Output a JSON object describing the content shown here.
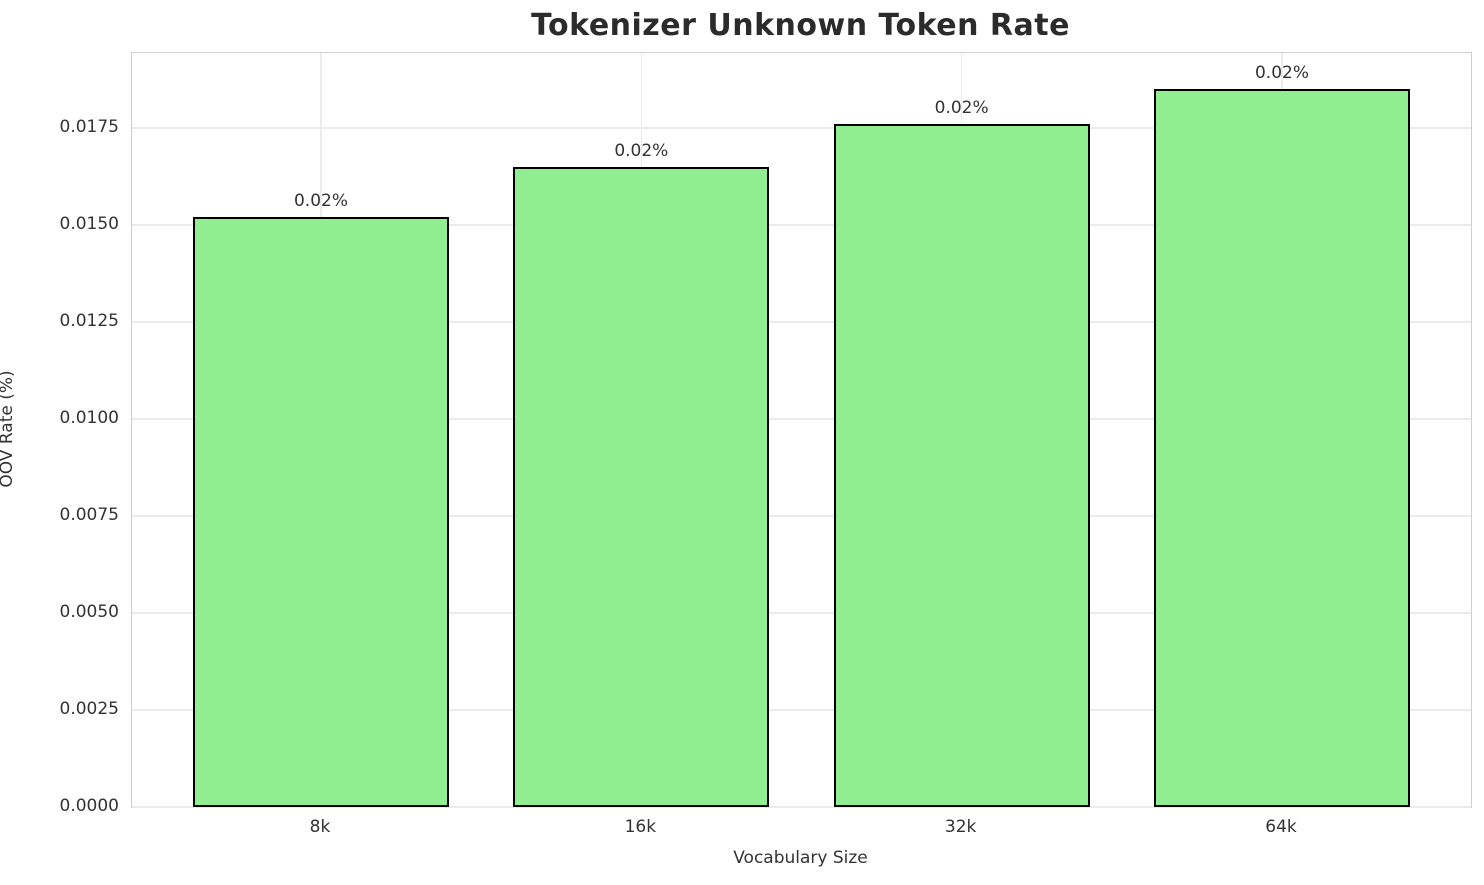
{
  "chart_data": {
    "type": "bar",
    "title": "Tokenizer Unknown Token Rate",
    "xlabel": "Vocabulary Size",
    "ylabel": "OOV Rate (%)",
    "categories": [
      "8k",
      "16k",
      "32k",
      "64k"
    ],
    "values": [
      0.0152,
      0.0165,
      0.0176,
      0.0185
    ],
    "bar_labels": [
      "0.02%",
      "0.02%",
      "0.02%",
      "0.02%"
    ],
    "ylim": [
      0,
      0.01943
    ],
    "yticks": [
      {
        "value": 0.0,
        "label": "0.0000"
      },
      {
        "value": 0.0025,
        "label": "0.0025"
      },
      {
        "value": 0.005,
        "label": "0.0050"
      },
      {
        "value": 0.0075,
        "label": "0.0075"
      },
      {
        "value": 0.01,
        "label": "0.0100"
      },
      {
        "value": 0.0125,
        "label": "0.0125"
      },
      {
        "value": 0.015,
        "label": "0.0150"
      },
      {
        "value": 0.0175,
        "label": "0.0175"
      }
    ],
    "grid": true,
    "legend_position": "none",
    "colors": {
      "bar_fill": "#90EE90",
      "bar_edge": "#000000",
      "grid": "#ebebeb",
      "spine": "#cfcfcf",
      "title_text": "#2b2b2b",
      "tick_text": "#333333"
    }
  }
}
